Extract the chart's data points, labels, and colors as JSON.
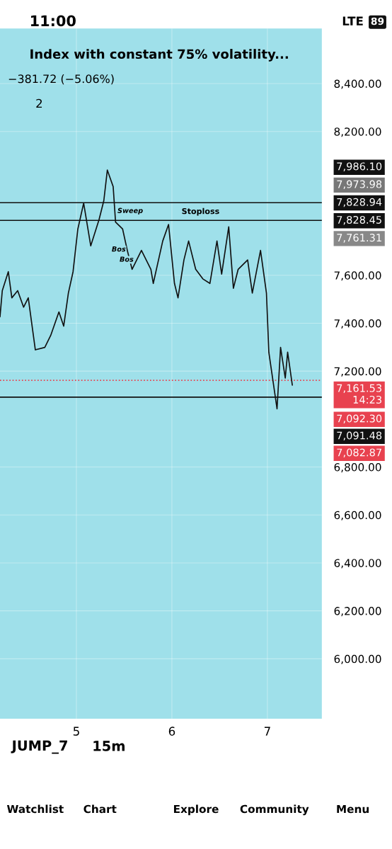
{
  "chart_data": {
    "type": "line",
    "title": "Index with constant 75% volatility...",
    "subtitle": "−381.72 (−5.06%)",
    "x": [
      4.2,
      4.224,
      4.287,
      4.324,
      4.385,
      4.447,
      4.496,
      4.57,
      4.669,
      4.731,
      4.817,
      4.867,
      4.916,
      4.965,
      5.015,
      5.076,
      5.15,
      5.237,
      5.287,
      5.324,
      5.385,
      5.41,
      5.484,
      5.533,
      5.583,
      5.681,
      5.78,
      5.805,
      5.904,
      5.965,
      6.027,
      6.064,
      6.126,
      6.175,
      6.249,
      6.324,
      6.398,
      6.472,
      6.521,
      6.595,
      6.644,
      6.694,
      6.793,
      6.842,
      6.928,
      6.99,
      7.015,
      7.101,
      7.138,
      7.187,
      7.212,
      7.261
    ],
    "series": [
      {
        "color": "#111111",
        "values": [
          7427,
          7536,
          7615,
          7506,
          7536,
          7467,
          7506,
          7289,
          7299,
          7349,
          7447,
          7388,
          7526,
          7615,
          7793,
          7901,
          7723,
          7832,
          7911,
          8039,
          7970,
          7822,
          7793,
          7704,
          7625,
          7704,
          7625,
          7566,
          7743,
          7812,
          7566,
          7506,
          7664,
          7743,
          7625,
          7585,
          7566,
          7743,
          7605,
          7802,
          7546,
          7625,
          7664,
          7526,
          7704,
          7526,
          7279,
          7043,
          7299,
          7171,
          7279,
          7142
        ]
      }
    ],
    "xlim": [
      4.2,
      7.57
    ],
    "ylim": [
      5750,
      8630
    ],
    "xticks": [
      5,
      6,
      7
    ],
    "yticks": [
      {
        "value": 6000,
        "label": "6,000.00"
      },
      {
        "value": 6200,
        "label": "6,200.00"
      },
      {
        "value": 6400,
        "label": "6,400.00"
      },
      {
        "value": 6600,
        "label": "6,600.00"
      },
      {
        "value": 6800,
        "label": "6,800.00"
      },
      {
        "value": 7200,
        "label": "7,200.00"
      },
      {
        "value": 7400,
        "label": "7,400.00"
      },
      {
        "value": 7600,
        "label": "7,600.00"
      },
      {
        "value": 8200,
        "label": "8,200.00"
      },
      {
        "value": 8400,
        "label": "8,400.00"
      }
    ],
    "grid": true,
    "ref_lines": [
      {
        "axis": "y",
        "value": 7903,
        "color": "#111111"
      },
      {
        "axis": "y",
        "value": 7829,
        "label": "Stoploss",
        "color": "#111111"
      },
      {
        "axis": "y",
        "value": 7091.48,
        "color": "#111111"
      },
      {
        "axis": "y",
        "value": 7161.53,
        "color": "#e8424f",
        "line_style": "dotted"
      }
    ],
    "annotations": [
      {
        "text": "Sweep",
        "x": 5.37,
        "y": 7829
      },
      "Bos",
      "Bos",
      "7,986.10",
      "7,973.98",
      "7,828.94",
      "7,828.45",
      "7,761.31",
      "7,161.53\n14:23",
      "7,092.30",
      "7,091.48",
      "7,082.87",
      "11:00",
      "LTE",
      "89",
      "2",
      "JUMP_7",
      "15m",
      "Watchlist",
      "Chart",
      "Explore",
      "Community",
      "Menu"
    ]
  }
}
